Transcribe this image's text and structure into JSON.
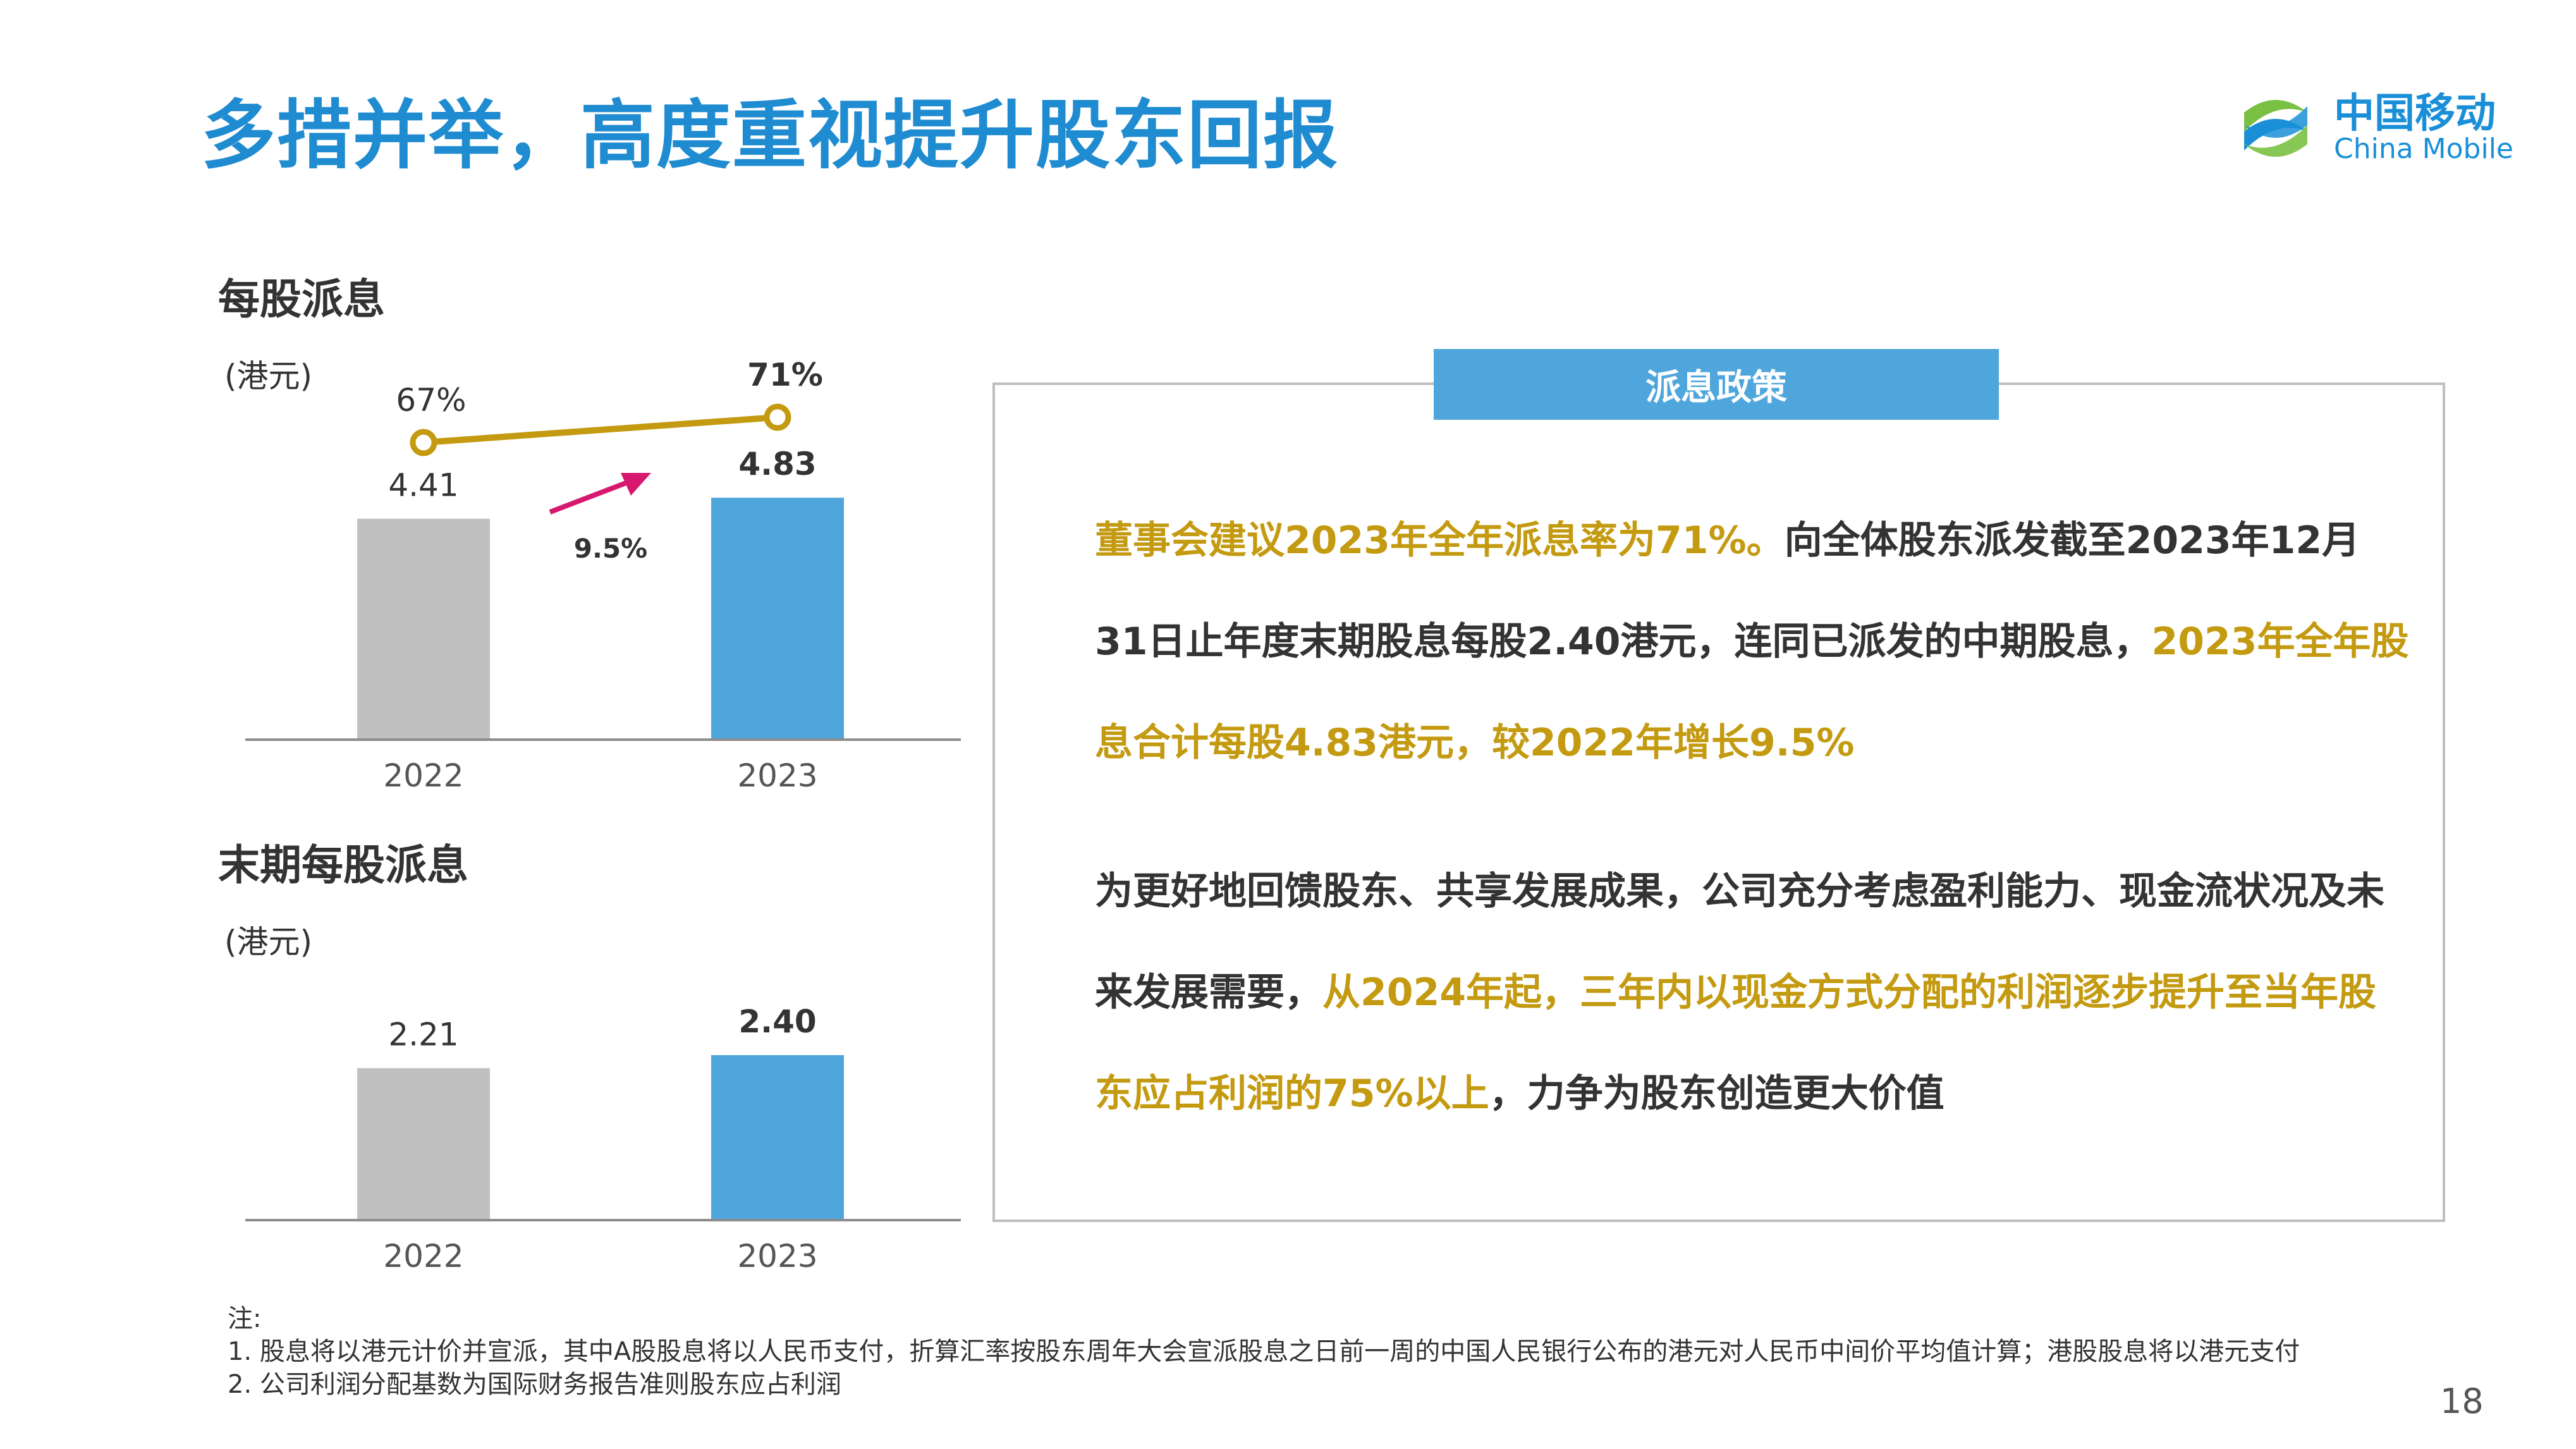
{
  "title": "多措并举，高度重视提升股东回报",
  "logo": {
    "cn": "中国移动",
    "en": "China Mobile",
    "color": "#1a8fd8"
  },
  "colors": {
    "gray_bar": "#c0c0c0",
    "blue_bar": "#4fa6dc",
    "gold": "#c39a10",
    "pink_arrow": "#d6196e"
  },
  "chart_data": [
    {
      "type": "bar",
      "title": "每股派息",
      "unit": "(港元)",
      "categories": [
        "2022",
        "2023"
      ],
      "values": [
        4.41,
        4.83
      ],
      "value_labels": [
        "4.41",
        "4.83"
      ],
      "growth_label": "9.5%",
      "payout_line": {
        "values": [
          67,
          71
        ],
        "labels": [
          "67%",
          "71%"
        ]
      }
    },
    {
      "type": "bar",
      "title": "末期每股派息",
      "unit": "(港元)",
      "categories": [
        "2022",
        "2023"
      ],
      "values": [
        2.21,
        2.4
      ],
      "value_labels": [
        "2.21",
        "2.40"
      ]
    }
  ],
  "policy": {
    "tag": "派息政策",
    "para1": [
      {
        "text": "董事会建议2023年全年派息率为71%。",
        "style": "gold"
      },
      {
        "text": "向全体股东派发截至2023年12月31日止年度末期股息每股2.40港元，连同已派发的中期股息，",
        "style": "dark"
      },
      {
        "text": "2023年全年股息合计每股4.83港元，较2022年增长9.5%",
        "style": "gold"
      }
    ],
    "para2": [
      {
        "text": "为更好地回馈股东、共享发展成果，公司充分考虑盈利能力、现金流状况及未来发展需要，",
        "style": "dark"
      },
      {
        "text": "从2024年起，三年内以现金方式分配的利润逐步提升至当年股东应占利润的75%以上",
        "style": "gold"
      },
      {
        "text": "，力争为股东创造更大价值",
        "style": "dark"
      }
    ]
  },
  "notes": [
    "注:",
    "1. 股息将以港元计价并宣派，其中A股股息将以人民币支付，折算汇率按股东周年大会宣派股息之日前一周的中国人民银行公布的港元对人民币中间价平均值计算；港股股息将以港元支付",
    "2. 公司利润分配基数为国际财务报告准则股东应占利润"
  ],
  "page_number": "18"
}
